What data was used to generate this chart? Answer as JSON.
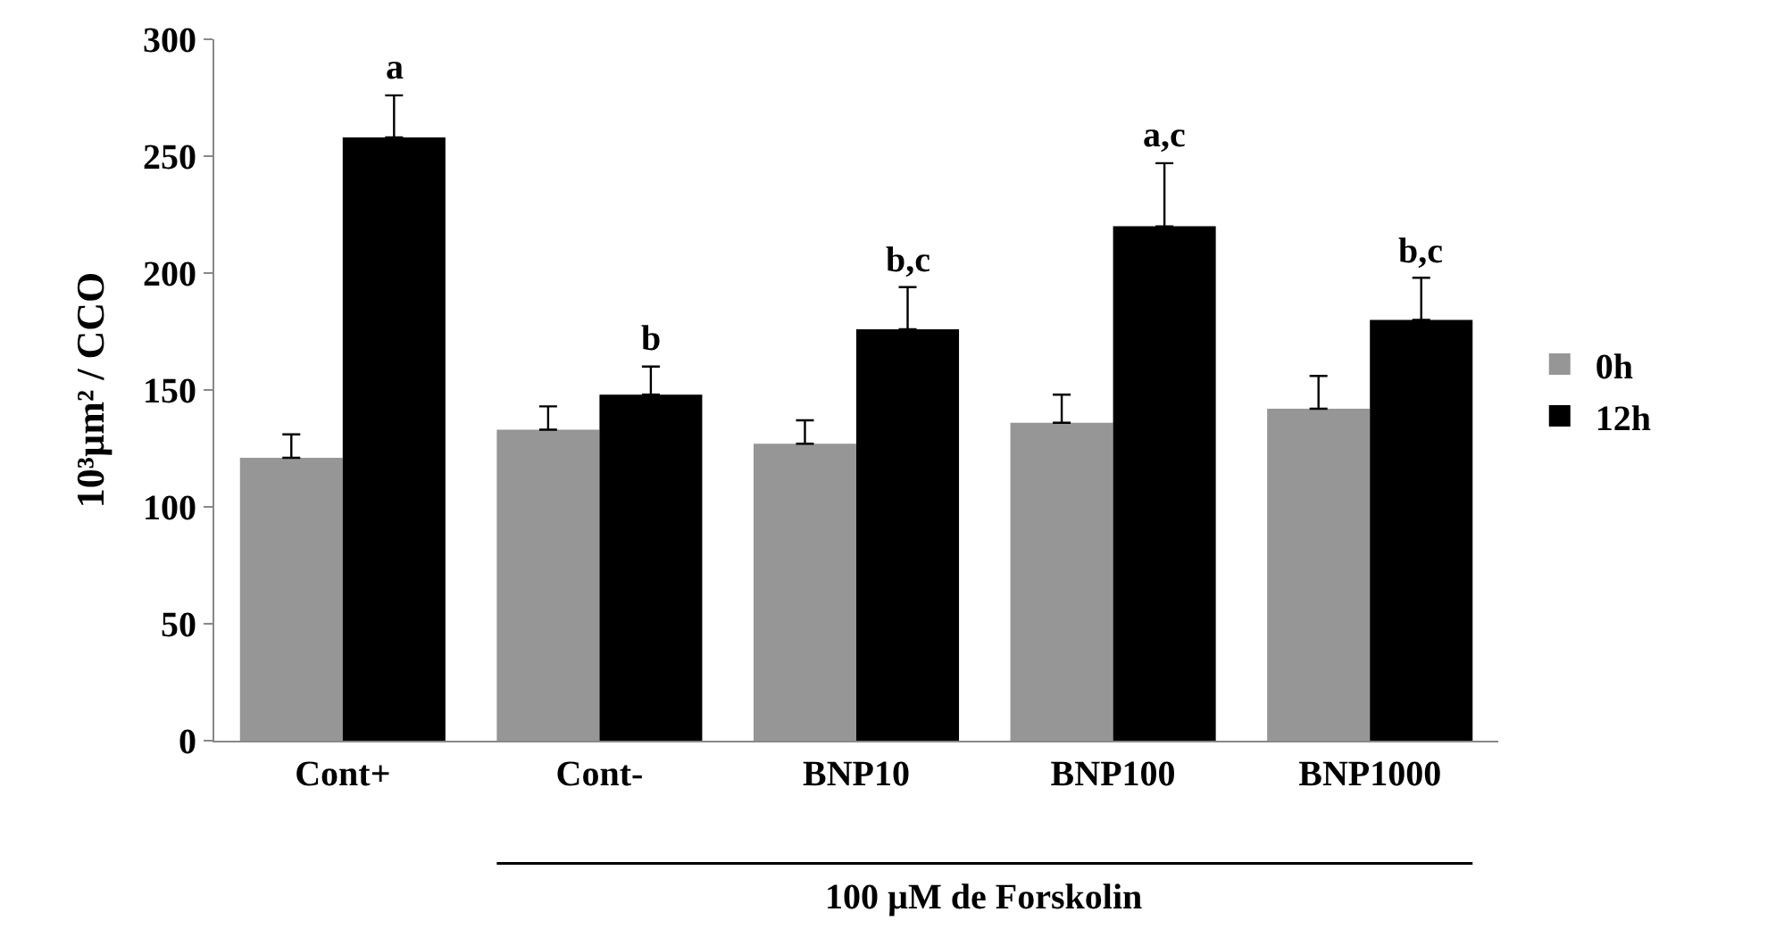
{
  "chart_data": {
    "type": "bar",
    "ylabel": "10³µm² / CCO",
    "categories": [
      "Cont+",
      "Cont-",
      "BNP10",
      "BNP100",
      "BNP1000"
    ],
    "series": [
      {
        "name": "0h",
        "color": "#969696",
        "values": [
          121,
          133,
          127,
          136,
          142
        ],
        "errors": [
          [
            121,
            131
          ],
          [
            133,
            143
          ],
          [
            127,
            137
          ],
          [
            136,
            148
          ],
          [
            142,
            156
          ]
        ]
      },
      {
        "name": "12h",
        "color": "#000000",
        "values": [
          258,
          148,
          176,
          220,
          180
        ],
        "errors": [
          [
            258,
            276
          ],
          [
            148,
            160
          ],
          [
            176,
            194
          ],
          [
            220,
            247
          ],
          [
            180,
            198
          ]
        ]
      }
    ],
    "ylim": [
      0,
      300
    ],
    "yticks": [
      0,
      50,
      100,
      150,
      200,
      250,
      300
    ],
    "legend": "right",
    "annotations": [
      "a",
      "b",
      "b,c",
      "a,c",
      "b,c",
      "100 µM de Forskolin"
    ]
  }
}
